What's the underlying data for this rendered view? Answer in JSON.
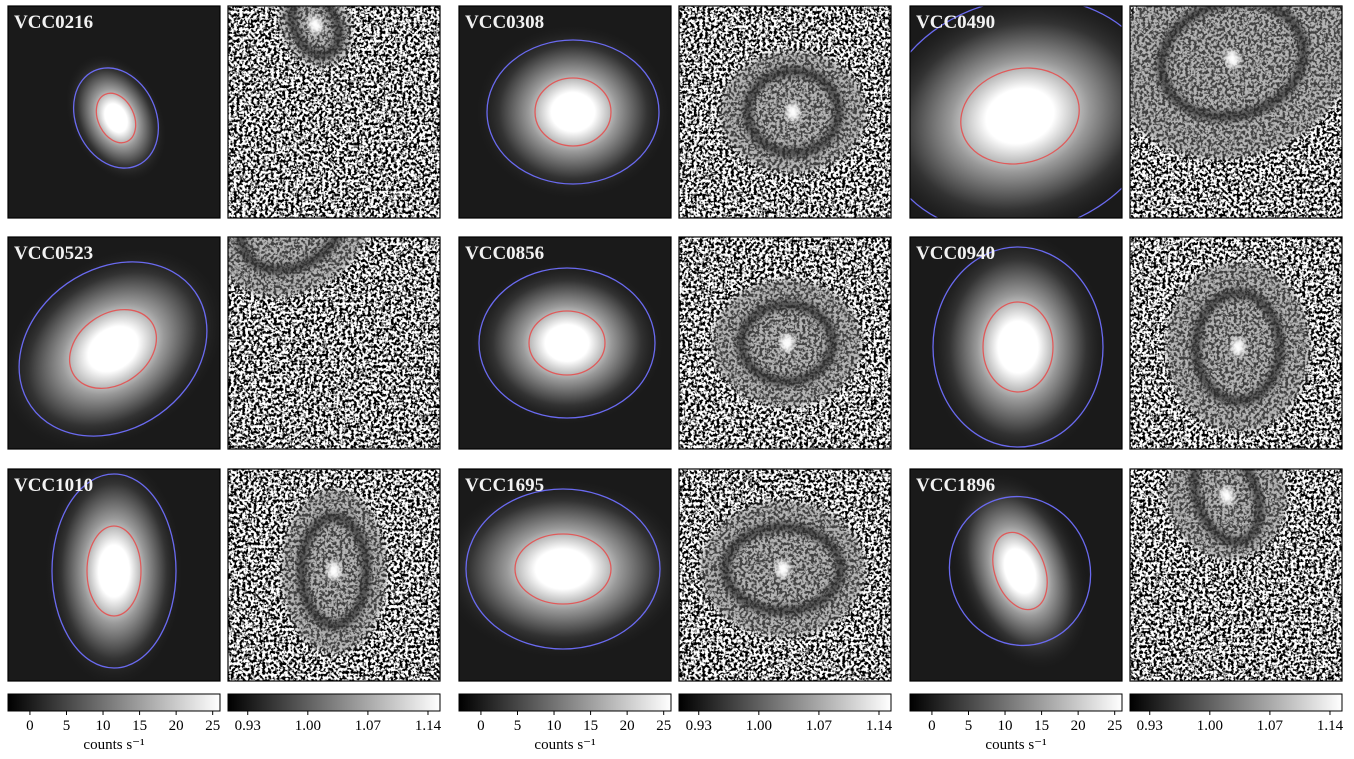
{
  "panels": [
    {
      "label": "VCC0216"
    },
    {
      "label": "VCC0308"
    },
    {
      "label": "VCC0490"
    },
    {
      "label": "VCC0523"
    },
    {
      "label": "VCC0856"
    },
    {
      "label": "VCC0940"
    },
    {
      "label": "VCC1010"
    },
    {
      "label": "VCC1695"
    },
    {
      "label": "VCC1896"
    }
  ],
  "colorbars": [
    {
      "lim": [
        -3,
        26
      ],
      "ticks": [
        0,
        5,
        10,
        15,
        20,
        25
      ],
      "label": "counts s⁻¹"
    },
    {
      "lim": [
        0.907,
        1.154
      ],
      "ticks": [
        0.93,
        {
          "value": 1,
          "label": "1.00"
        },
        1.07,
        1.14
      ]
    },
    {
      "lim": [
        -3,
        26
      ],
      "ticks": [
        0,
        5,
        10,
        15,
        20,
        25
      ],
      "label": "counts s⁻¹"
    },
    {
      "lim": [
        0.907,
        1.154
      ],
      "ticks": [
        0.93,
        {
          "value": 1,
          "label": "1.00"
        },
        1.07,
        1.14
      ]
    },
    {
      "lim": [
        -3,
        26
      ],
      "ticks": [
        0,
        5,
        10,
        15,
        20,
        25
      ],
      "label": "counts s⁻¹"
    },
    {
      "lim": [
        0.907,
        1.154
      ],
      "ticks": [
        0.93,
        {
          "value": 1,
          "label": "1.00"
        },
        1.07,
        1.14
      ]
    }
  ]
}
